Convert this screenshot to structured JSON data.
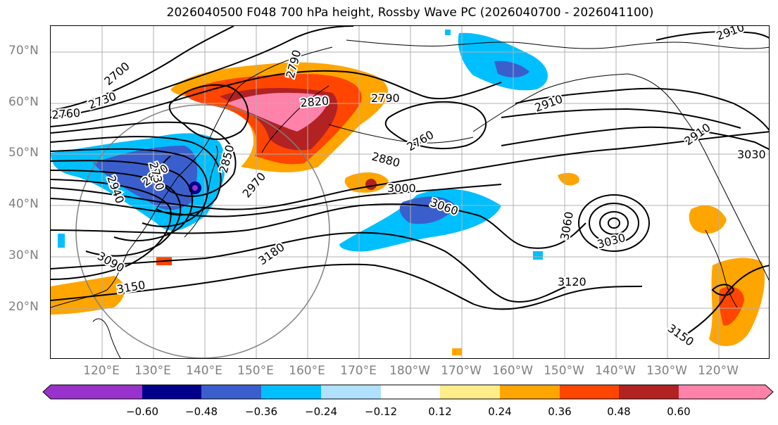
{
  "title": "2026040500 F048 700 hPa height, Rossby Wave PC (2026040700 - 2026041100)",
  "lat_labels": [
    "70°N",
    "60°N",
    "50°N",
    "40°N",
    "30°N",
    "20°N"
  ],
  "lon_labels": [
    "120°E",
    "130°E",
    "140°E",
    "150°E",
    "160°E",
    "170°E",
    "180°W",
    "170°W",
    "160°W",
    "150°W",
    "140°W",
    "130°W",
    "120°W"
  ],
  "contour_labels": [
    "2700",
    "2730",
    "2760",
    "2790",
    "2820",
    "2790",
    "2910",
    "2760",
    "2880",
    "2850",
    "2970",
    "2910",
    "3030",
    "3000",
    "3060",
    "3060",
    "3030",
    "3090",
    "3150",
    "3180",
    "3120",
    "3150",
    "2940",
    "2880",
    "2910",
    "2730"
  ],
  "colorbar": {
    "colors": [
      "#9932cc",
      "#00008b",
      "#3a5fcd",
      "#00bfff",
      "#b0e2ff",
      "#ffffff",
      "#ffec8b",
      "#ffa500",
      "#ff4500",
      "#b22222",
      "#ff82ab"
    ],
    "tick_labels": [
      "−0.60",
      "−0.48",
      "−0.36",
      "−0.24",
      "−0.12",
      "0.12",
      "0.24",
      "0.36",
      "0.48",
      "0.60"
    ]
  }
}
